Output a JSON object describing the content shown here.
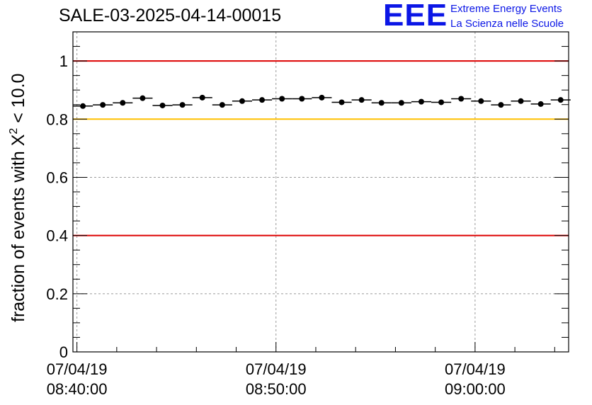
{
  "header": {
    "title": "SALE-03-2025-04-14-00015",
    "logo_text": "EEE",
    "logo_line1": "Extreme Energy Events",
    "logo_line2": "La Scienza nelle Scuole"
  },
  "colors": {
    "red_line": "#dd0000",
    "yellow_line": "#ffc000",
    "logo_blue": "#0b16e6",
    "grid": "#9a9a9a"
  },
  "chart_data": {
    "type": "scatter",
    "title": "SALE-03-2025-04-14-00015",
    "ylabel_prefix": "fraction of events with X",
    "ylabel_sup": "2",
    "ylabel_suffix": " < 10.0",
    "xlabel": "",
    "xlim_minutes": [
      -0.2,
      24.7
    ],
    "ylim": [
      0,
      1.1
    ],
    "y_ticks": [
      0,
      0.2,
      0.4,
      0.6,
      0.8,
      1
    ],
    "y_tick_labels": [
      "0",
      "0.2",
      "0.4",
      "0.6",
      "0.8",
      "1"
    ],
    "x_ticks": [
      {
        "minute": 0,
        "date": "07/04/19",
        "time": "08:40:00"
      },
      {
        "minute": 10,
        "date": "07/04/19",
        "time": "08:50:00"
      },
      {
        "minute": 20,
        "date": "07/04/19",
        "time": "09:00:00"
      }
    ],
    "reference_lines": [
      {
        "y": 1.0,
        "color": "red"
      },
      {
        "y": 0.8,
        "color": "yellow"
      },
      {
        "y": 0.4,
        "color": "red"
      }
    ],
    "bin_width_minutes": 1,
    "points": [
      {
        "x": 0.3,
        "y": 0.845
      },
      {
        "x": 1.3,
        "y": 0.849
      },
      {
        "x": 2.3,
        "y": 0.856
      },
      {
        "x": 3.3,
        "y": 0.872
      },
      {
        "x": 4.3,
        "y": 0.847
      },
      {
        "x": 5.3,
        "y": 0.849
      },
      {
        "x": 6.3,
        "y": 0.874
      },
      {
        "x": 7.3,
        "y": 0.849
      },
      {
        "x": 8.3,
        "y": 0.862
      },
      {
        "x": 9.3,
        "y": 0.866
      },
      {
        "x": 10.3,
        "y": 0.87
      },
      {
        "x": 11.3,
        "y": 0.87
      },
      {
        "x": 12.3,
        "y": 0.874
      },
      {
        "x": 13.3,
        "y": 0.858
      },
      {
        "x": 14.3,
        "y": 0.866
      },
      {
        "x": 15.3,
        "y": 0.856
      },
      {
        "x": 16.3,
        "y": 0.856
      },
      {
        "x": 17.3,
        "y": 0.86
      },
      {
        "x": 18.3,
        "y": 0.858
      },
      {
        "x": 19.3,
        "y": 0.87
      },
      {
        "x": 20.3,
        "y": 0.862
      },
      {
        "x": 21.3,
        "y": 0.849
      },
      {
        "x": 22.3,
        "y": 0.862
      },
      {
        "x": 23.3,
        "y": 0.852
      },
      {
        "x": 24.3,
        "y": 0.866
      }
    ]
  }
}
